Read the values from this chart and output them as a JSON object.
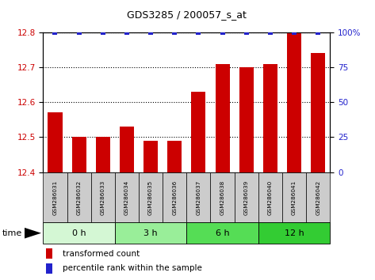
{
  "title": "GDS3285 / 200057_s_at",
  "samples": [
    "GSM286031",
    "GSM286032",
    "GSM286033",
    "GSM286034",
    "GSM286035",
    "GSM286036",
    "GSM286037",
    "GSM286038",
    "GSM286039",
    "GSM286040",
    "GSM286041",
    "GSM286042"
  ],
  "bar_values": [
    12.57,
    12.5,
    12.5,
    12.53,
    12.49,
    12.49,
    12.63,
    12.71,
    12.7,
    12.71,
    12.8,
    12.74
  ],
  "percentile_values": [
    100,
    100,
    100,
    100,
    100,
    100,
    100,
    100,
    100,
    100,
    100,
    100
  ],
  "bar_color": "#cc0000",
  "percentile_color": "#2222cc",
  "ylim_left": [
    12.4,
    12.8
  ],
  "ylim_right": [
    0,
    100
  ],
  "yticks_left": [
    12.4,
    12.5,
    12.6,
    12.7,
    12.8
  ],
  "yticks_right": [
    0,
    25,
    50,
    75,
    100
  ],
  "groups": [
    {
      "label": "0 h",
      "start": 0,
      "end": 3,
      "color": "#d4f7d4"
    },
    {
      "label": "3 h",
      "start": 3,
      "end": 6,
      "color": "#99ee99"
    },
    {
      "label": "6 h",
      "start": 6,
      "end": 9,
      "color": "#55dd55"
    },
    {
      "label": "12 h",
      "start": 9,
      "end": 12,
      "color": "#33cc33"
    }
  ],
  "time_label": "time",
  "legend_bar_label": "transformed count",
  "legend_pct_label": "percentile rank within the sample",
  "bg_color": "#ffffff",
  "grid_color": "#000000",
  "tick_label_color_left": "#cc0000",
  "tick_label_color_right": "#2222cc",
  "label_box_color": "#cccccc",
  "right_tick_suffix": "%"
}
